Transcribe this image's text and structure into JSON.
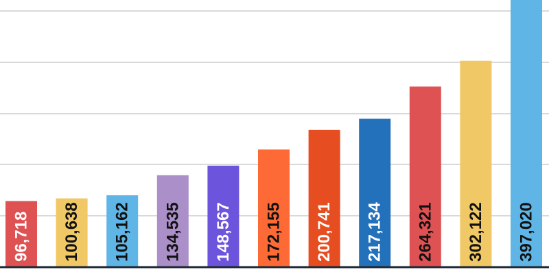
{
  "chart_data": {
    "type": "bar",
    "title": "",
    "xlabel": "",
    "ylabel": "",
    "ylim": [
      0,
      390000
    ],
    "grid": true,
    "gridlines_y": [
      75000,
      150000,
      225000,
      300000,
      375000
    ],
    "values": [
      96718,
      100638,
      105162,
      134535,
      148567,
      172155,
      200741,
      217134,
      264321,
      302122,
      397020
    ],
    "value_labels": [
      "96,718",
      "100,638",
      "105,162",
      "134,535",
      "148,567",
      "172,155",
      "200,741",
      "217,134",
      "264,321",
      "302,122",
      "397,020"
    ],
    "colors": [
      "#de5254",
      "#f0c866",
      "#5fb5e6",
      "#ab8fc9",
      "#6d54dc",
      "#fe6a36",
      "#e64e22",
      "#2371bb",
      "#de5254",
      "#f0c866",
      "#5fb5e6"
    ],
    "label_colors": [
      "#ffffff",
      "#111111",
      "#111111",
      "#111111",
      "#ffffff",
      "#111111",
      "#ffffff",
      "#ffffff",
      "#111111",
      "#111111",
      "#111111"
    ]
  }
}
